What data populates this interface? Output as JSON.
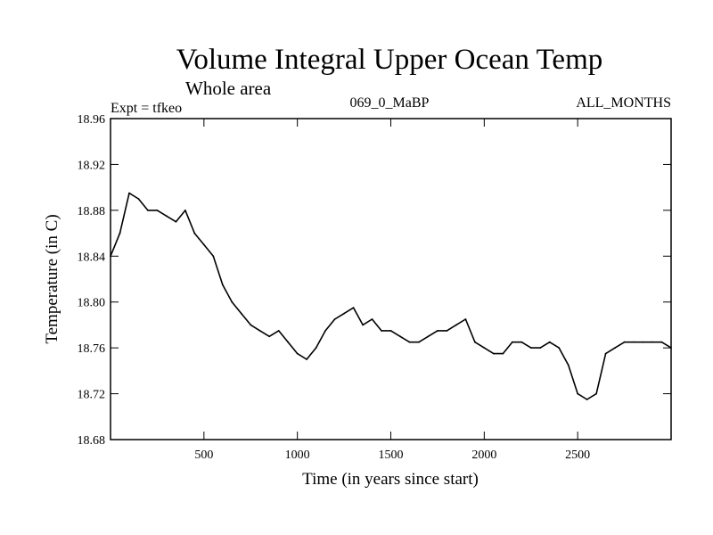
{
  "chart_data": {
    "type": "line",
    "title": "Volume Integral Upper Ocean Temp",
    "subtitle": "Whole area",
    "experiment": "Expt = tfkeo",
    "run_id": "069_0_MaBP",
    "season": "ALL_MONTHS",
    "xlabel": "Time (in years since start)",
    "ylabel": "Temperature (in C)",
    "xlim": [
      0,
      3000
    ],
    "ylim": [
      18.68,
      18.96
    ],
    "x_ticks": [
      500,
      1000,
      1500,
      2000,
      2500
    ],
    "y_ticks": [
      18.68,
      18.72,
      18.76,
      18.8,
      18.84,
      18.88,
      18.92,
      18.96
    ],
    "y_tick_labels": [
      "18.68",
      "18.72",
      "18.76",
      "18.80",
      "18.84",
      "18.88",
      "18.92",
      "18.96"
    ],
    "grid": false,
    "legend": "none",
    "line_color": "#000000",
    "series": [
      {
        "x": [
          0,
          50,
          100,
          150,
          200,
          250,
          300,
          350,
          400,
          450,
          500,
          550,
          600,
          650,
          700,
          750,
          800,
          850,
          900,
          950,
          1000,
          1050,
          1100,
          1150,
          1200,
          1250,
          1300,
          1350,
          1400,
          1450,
          1500,
          1550,
          1600,
          1650,
          1700,
          1750,
          1800,
          1850,
          1900,
          1950,
          2000,
          2050,
          2100,
          2150,
          2200,
          2250,
          2300,
          2350,
          2400,
          2450,
          2500,
          2550,
          2600,
          2650,
          2700,
          2750,
          2800,
          2850,
          2900,
          2950,
          3000
        ],
        "y": [
          18.84,
          18.86,
          18.895,
          18.89,
          18.88,
          18.88,
          18.875,
          18.87,
          18.88,
          18.86,
          18.85,
          18.84,
          18.815,
          18.8,
          18.79,
          18.78,
          18.775,
          18.77,
          18.775,
          18.765,
          18.755,
          18.75,
          18.76,
          18.775,
          18.785,
          18.79,
          18.795,
          18.78,
          18.785,
          18.775,
          18.775,
          18.77,
          18.765,
          18.765,
          18.77,
          18.775,
          18.775,
          18.78,
          18.785,
          18.765,
          18.76,
          18.755,
          18.755,
          18.765,
          18.765,
          18.76,
          18.76,
          18.765,
          18.76,
          18.745,
          18.72,
          18.715,
          18.72,
          18.755,
          18.76,
          18.765,
          18.765,
          18.765,
          18.765,
          18.765,
          18.76
        ]
      }
    ]
  }
}
